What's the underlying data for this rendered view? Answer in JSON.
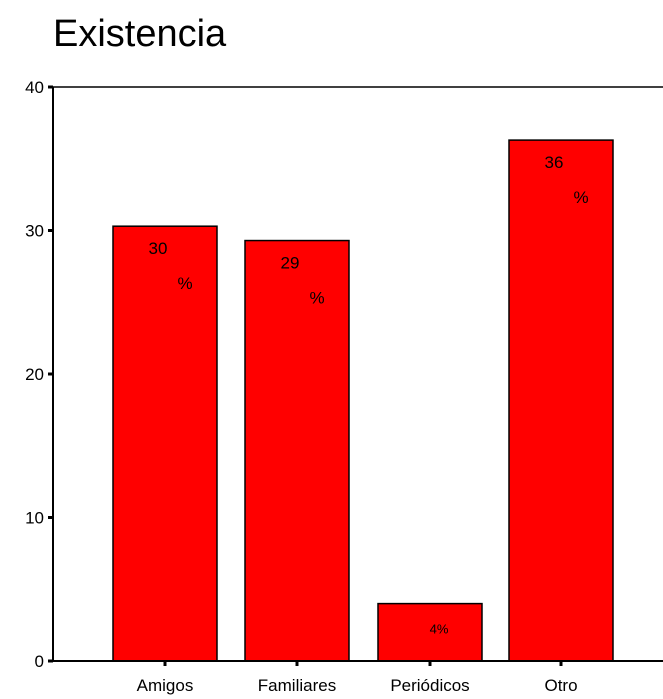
{
  "chart_data": {
    "type": "bar",
    "title": "Existencia",
    "xlabel": "",
    "ylabel": "",
    "categories": [
      "Amigos",
      "Familiares",
      "Periódicos",
      "Otro"
    ],
    "values": [
      30.3,
      29.3,
      4.0,
      36.3
    ],
    "data_labels": [
      [
        "30",
        "%"
      ],
      [
        "29",
        "%"
      ],
      [
        "4%"
      ],
      [
        "36",
        "%"
      ]
    ],
    "ylim": [
      0,
      40
    ],
    "yticks": [
      0,
      10,
      20,
      30,
      40
    ],
    "ytick_labels": [
      "0",
      "10",
      "20",
      "30",
      "40"
    ],
    "grid": false,
    "legend": "none",
    "bar_color": "#ff0000",
    "bar_edge_color": "#000000"
  }
}
